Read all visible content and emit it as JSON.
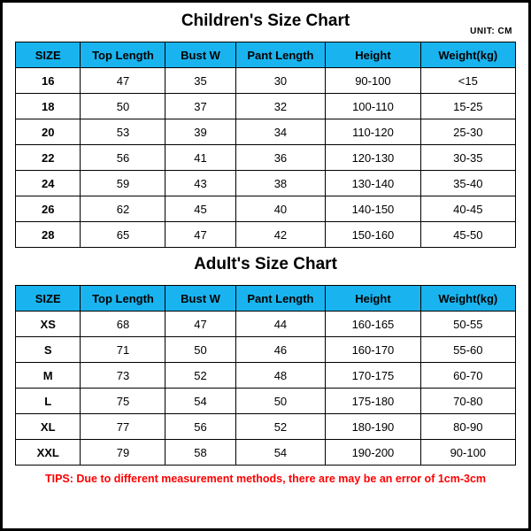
{
  "colors": {
    "header_bg": "#19b4ef",
    "border": "#000000",
    "text": "#000000",
    "tips": "#ff0000",
    "bg": "#ffffff"
  },
  "children": {
    "title": "Children's Size Chart",
    "unit": "UNIT: CM",
    "columns": [
      "SIZE",
      "Top Length",
      "Bust W",
      "Pant Length",
      "Height",
      "Weight(kg)"
    ],
    "rows": [
      [
        "16",
        "47",
        "35",
        "30",
        "90-100",
        "<15"
      ],
      [
        "18",
        "50",
        "37",
        "32",
        "100-110",
        "15-25"
      ],
      [
        "20",
        "53",
        "39",
        "34",
        "110-120",
        "25-30"
      ],
      [
        "22",
        "56",
        "41",
        "36",
        "120-130",
        "30-35"
      ],
      [
        "24",
        "59",
        "43",
        "38",
        "130-140",
        "35-40"
      ],
      [
        "26",
        "62",
        "45",
        "40",
        "140-150",
        "40-45"
      ],
      [
        "28",
        "65",
        "47",
        "42",
        "150-160",
        "45-50"
      ]
    ]
  },
  "adult": {
    "title": "Adult's Size Chart",
    "columns": [
      "SIZE",
      "Top Length",
      "Bust W",
      "Pant Length",
      "Height",
      "Weight(kg)"
    ],
    "rows": [
      [
        "XS",
        "68",
        "47",
        "44",
        "160-165",
        "50-55"
      ],
      [
        "S",
        "71",
        "50",
        "46",
        "160-170",
        "55-60"
      ],
      [
        "M",
        "73",
        "52",
        "48",
        "170-175",
        "60-70"
      ],
      [
        "L",
        "75",
        "54",
        "50",
        "175-180",
        "70-80"
      ],
      [
        "XL",
        "77",
        "56",
        "52",
        "180-190",
        "80-90"
      ],
      [
        "XXL",
        "79",
        "58",
        "54",
        "190-200",
        "90-100"
      ]
    ]
  },
  "tips": "TIPS: Due to different measurement methods, there are may be an error of 1cm-3cm"
}
